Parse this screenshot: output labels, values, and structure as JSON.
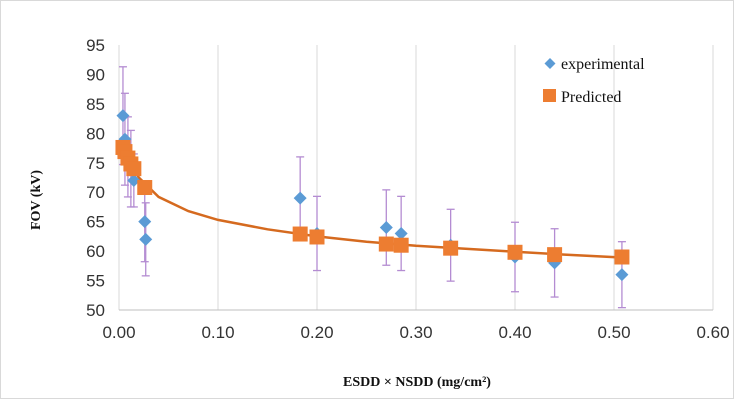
{
  "chart_data": {
    "type": "scatter",
    "xlabel": "ESDD × NSDD (mg/cm²)",
    "ylabel": "FOV (kV)",
    "xlim": [
      0,
      0.6
    ],
    "ylim": [
      50,
      95
    ],
    "x_ticks": [
      "0.00",
      "0.10",
      "0.20",
      "0.30",
      "0.40",
      "0.50",
      "0.60"
    ],
    "y_ticks": [
      "50",
      "55",
      "60",
      "65",
      "70",
      "75",
      "80",
      "85",
      "90",
      "95"
    ],
    "grid": "vertical",
    "legend_position": "top-right",
    "series": [
      {
        "name": "experimental",
        "marker": "diamond",
        "color": "#5B9BD5",
        "error_bar_color": "#B48CD2",
        "points": [
          {
            "x": 0.004,
            "y": 83,
            "err": 8.3
          },
          {
            "x": 0.006,
            "y": 79,
            "err": 7.8
          },
          {
            "x": 0.009,
            "y": 76,
            "err": 6.8
          },
          {
            "x": 0.012,
            "y": 74,
            "err": 6.5
          },
          {
            "x": 0.015,
            "y": 72,
            "err": 4.5
          },
          {
            "x": 0.026,
            "y": 65,
            "err": 6.8
          },
          {
            "x": 0.027,
            "y": 62,
            "err": 6.2
          },
          {
            "x": 0.183,
            "y": 69,
            "err": 7
          },
          {
            "x": 0.2,
            "y": 63,
            "err": 6.3
          },
          {
            "x": 0.27,
            "y": 64,
            "err": 6.4
          },
          {
            "x": 0.285,
            "y": 63,
            "err": 6.3
          },
          {
            "x": 0.335,
            "y": 61,
            "err": 6.1
          },
          {
            "x": 0.4,
            "y": 59,
            "err": 5.9
          },
          {
            "x": 0.44,
            "y": 58,
            "err": 5.8
          },
          {
            "x": 0.508,
            "y": 56,
            "err": 5.6
          }
        ]
      },
      {
        "name": "Predicted",
        "marker": "square",
        "color": "#ED7D31",
        "points": [
          {
            "x": 0.004,
            "y": 77.6
          },
          {
            "x": 0.006,
            "y": 76.9
          },
          {
            "x": 0.009,
            "y": 75.8
          },
          {
            "x": 0.012,
            "y": 74.8
          },
          {
            "x": 0.015,
            "y": 74
          },
          {
            "x": 0.026,
            "y": 70.8
          },
          {
            "x": 0.183,
            "y": 62.9
          },
          {
            "x": 0.2,
            "y": 62.4
          },
          {
            "x": 0.27,
            "y": 61.2
          },
          {
            "x": 0.285,
            "y": 61
          },
          {
            "x": 0.335,
            "y": 60.5
          },
          {
            "x": 0.4,
            "y": 59.8
          },
          {
            "x": 0.44,
            "y": 59.4
          },
          {
            "x": 0.508,
            "y": 59
          }
        ]
      }
    ],
    "fit_curve": {
      "color": "#D56A1F",
      "points": [
        {
          "x": 0.002,
          "y": 78.5
        },
        {
          "x": 0.005,
          "y": 77.2
        },
        {
          "x": 0.01,
          "y": 75.4
        },
        {
          "x": 0.02,
          "y": 72.5
        },
        {
          "x": 0.04,
          "y": 69.2
        },
        {
          "x": 0.07,
          "y": 66.8
        },
        {
          "x": 0.1,
          "y": 65.3
        },
        {
          "x": 0.15,
          "y": 63.7
        },
        {
          "x": 0.2,
          "y": 62.5
        },
        {
          "x": 0.25,
          "y": 61.6
        },
        {
          "x": 0.3,
          "y": 60.9
        },
        {
          "x": 0.35,
          "y": 60.4
        },
        {
          "x": 0.4,
          "y": 59.9
        },
        {
          "x": 0.45,
          "y": 59.4
        },
        {
          "x": 0.51,
          "y": 58.9
        }
      ]
    }
  }
}
